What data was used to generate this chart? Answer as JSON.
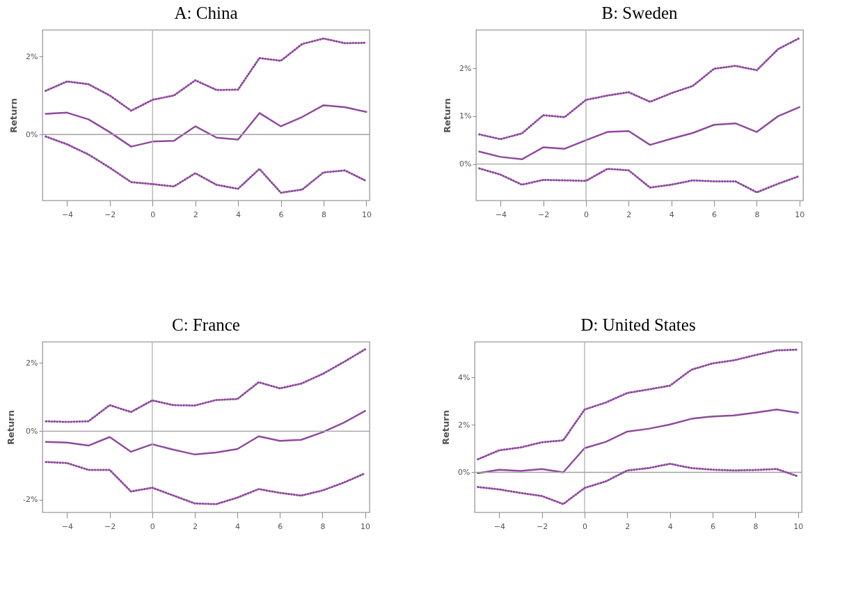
{
  "chart_data": [
    {
      "type": "line",
      "title": "A: China",
      "ylabel": "Return",
      "x": [
        -5,
        -4,
        -3,
        -2,
        -1,
        0,
        1,
        2,
        3,
        4,
        5,
        6,
        7,
        8,
        9,
        10
      ],
      "xlim": [
        -5.15,
        10.15
      ],
      "xticks": [
        -4,
        -2,
        0,
        2,
        4,
        6,
        8,
        10
      ],
      "ylim": [
        -1.69,
        2.68
      ],
      "yticks": [
        {
          "value": 0,
          "label": "0%"
        },
        {
          "value": 2,
          "label": "2%"
        }
      ],
      "grid": false,
      "ref_lines": [
        {
          "axis": "x",
          "value": 0,
          "color": "#b0b0b0"
        },
        {
          "axis": "y",
          "value": 0,
          "color": "#a0a0a0"
        }
      ],
      "series": [
        {
          "color": "#8e4a9e",
          "line_style": "solid",
          "values": [
            0.53,
            0.56,
            0.39,
            0.06,
            -0.31,
            -0.18,
            -0.16,
            0.21,
            -0.08,
            -0.13,
            0.55,
            0.21,
            0.45,
            0.75,
            0.7,
            0.58
          ]
        },
        {
          "color": "#8e4a9e",
          "line_style": "dotted",
          "values": [
            1.12,
            1.36,
            1.29,
            1.0,
            0.61,
            0.89,
            1.0,
            1.39,
            1.14,
            1.15,
            1.96,
            1.89,
            2.32,
            2.46,
            2.34,
            2.35
          ]
        },
        {
          "color": "#8e4a9e",
          "line_style": "dotted",
          "values": [
            -0.05,
            -0.25,
            -0.51,
            -0.85,
            -1.22,
            -1.27,
            -1.33,
            -0.99,
            -1.29,
            -1.39,
            -0.88,
            -1.49,
            -1.41,
            -0.97,
            -0.92,
            -1.19
          ]
        }
      ]
    },
    {
      "type": "line",
      "title": "B: Sweden",
      "ylabel": "Return",
      "x": [
        -5,
        -4,
        -3,
        -2,
        -1,
        0,
        1,
        2,
        3,
        4,
        5,
        6,
        7,
        8,
        9,
        10
      ],
      "xlim": [
        -5.15,
        10.17
      ],
      "xticks": [
        -4,
        -2,
        0,
        2,
        4,
        6,
        8,
        10
      ],
      "ylim": [
        -0.76,
        2.8
      ],
      "yticks": [
        {
          "value": 0,
          "label": "0%"
        },
        {
          "value": 1,
          "label": "1%"
        },
        {
          "value": 2,
          "label": "2%"
        }
      ],
      "grid": false,
      "ref_lines": [
        {
          "axis": "x",
          "value": 0,
          "color": "#b0b0b0"
        },
        {
          "axis": "y",
          "value": 0,
          "color": "#a0a0a0"
        }
      ],
      "series": [
        {
          "color": "#8e4a9e",
          "line_style": "solid",
          "values": [
            0.26,
            0.15,
            0.1,
            0.35,
            0.32,
            0.5,
            0.67,
            0.69,
            0.4,
            0.53,
            0.65,
            0.82,
            0.85,
            0.67,
            1.0,
            1.19
          ]
        },
        {
          "color": "#8e4a9e",
          "line_style": "dotted",
          "values": [
            0.62,
            0.52,
            0.64,
            1.02,
            0.98,
            1.34,
            1.43,
            1.5,
            1.3,
            1.48,
            1.63,
            1.99,
            2.05,
            1.96,
            2.4,
            2.63
          ]
        },
        {
          "color": "#8e4a9e",
          "line_style": "dotted",
          "values": [
            -0.09,
            -0.22,
            -0.43,
            -0.33,
            -0.34,
            -0.35,
            -0.1,
            -0.13,
            -0.49,
            -0.43,
            -0.34,
            -0.36,
            -0.36,
            -0.59,
            -0.41,
            -0.25
          ]
        }
      ]
    },
    {
      "type": "line",
      "title": "C: France",
      "ylabel": "Return",
      "x": [
        -5,
        -4,
        -3,
        -2,
        -1,
        0,
        1,
        2,
        3,
        4,
        5,
        6,
        7,
        8,
        9,
        10
      ],
      "xlim": [
        -5.16,
        10.21
      ],
      "xticks": [
        -4,
        -2,
        0,
        2,
        4,
        6,
        8,
        10
      ],
      "ylim": [
        -2.37,
        2.61
      ],
      "yticks": [
        {
          "value": -2,
          "label": "-2%"
        },
        {
          "value": 0,
          "label": "0%"
        },
        {
          "value": 2,
          "label": "2%"
        }
      ],
      "grid": false,
      "ref_lines": [
        {
          "axis": "x",
          "value": 0,
          "color": "#b0b0b0"
        },
        {
          "axis": "y",
          "value": 0,
          "color": "#a0a0a0"
        }
      ],
      "series": [
        {
          "color": "#8e4a9e",
          "line_style": "solid",
          "values": [
            -0.31,
            -0.33,
            -0.42,
            -0.17,
            -0.6,
            -0.38,
            -0.54,
            -0.68,
            -0.62,
            -0.52,
            -0.15,
            -0.28,
            -0.25,
            -0.03,
            0.25,
            0.59
          ]
        },
        {
          "color": "#8e4a9e",
          "line_style": "dotted",
          "values": [
            0.29,
            0.27,
            0.29,
            0.76,
            0.56,
            0.9,
            0.76,
            0.75,
            0.91,
            0.94,
            1.43,
            1.25,
            1.39,
            1.67,
            2.02,
            2.39
          ]
        },
        {
          "color": "#8e4a9e",
          "line_style": "dotted",
          "values": [
            -0.9,
            -0.93,
            -1.13,
            -1.13,
            -1.76,
            -1.65,
            -1.88,
            -2.11,
            -2.13,
            -1.94,
            -1.69,
            -1.8,
            -1.88,
            -1.73,
            -1.5,
            -1.23
          ]
        }
      ]
    },
    {
      "type": "line",
      "title": "D: United States",
      "ylabel": "Return",
      "x": [
        -5,
        -4,
        -3,
        -2,
        -1,
        0,
        1,
        2,
        3,
        4,
        5,
        6,
        7,
        8,
        9,
        10
      ],
      "xlim": [
        -5.15,
        10.17
      ],
      "xticks": [
        -4,
        -2,
        0,
        2,
        4,
        6,
        8,
        10
      ],
      "ylim": [
        -1.69,
        5.51
      ],
      "yticks": [
        {
          "value": 0,
          "label": "0%"
        },
        {
          "value": 2,
          "label": "2%"
        },
        {
          "value": 4,
          "label": "4%"
        }
      ],
      "grid": false,
      "ref_lines": [
        {
          "axis": "x",
          "value": 0,
          "color": "#b0b0b0"
        },
        {
          "axis": "y",
          "value": 0,
          "color": "#a0a0a0"
        }
      ],
      "series": [
        {
          "color": "#8e4a9e",
          "line_style": "solid",
          "values": [
            -0.04,
            0.11,
            0.06,
            0.14,
            0.0,
            1.02,
            1.29,
            1.72,
            1.84,
            2.02,
            2.26,
            2.36,
            2.4,
            2.52,
            2.65,
            2.51
          ]
        },
        {
          "color": "#8e4a9e",
          "line_style": "dotted",
          "values": [
            0.55,
            0.93,
            1.05,
            1.27,
            1.35,
            2.65,
            2.95,
            3.35,
            3.5,
            3.66,
            4.33,
            4.6,
            4.73,
            4.95,
            5.15,
            5.18
          ]
        },
        {
          "color": "#8e4a9e",
          "line_style": "dotted",
          "values": [
            -0.62,
            -0.72,
            -0.87,
            -1.0,
            -1.34,
            -0.66,
            -0.38,
            0.08,
            0.18,
            0.36,
            0.18,
            0.11,
            0.08,
            0.1,
            0.14,
            -0.17
          ]
        }
      ]
    }
  ]
}
